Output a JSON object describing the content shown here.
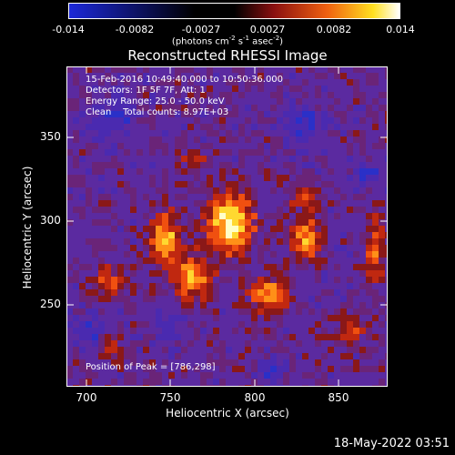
{
  "colorbar": {
    "ticks": [
      "-0.014",
      "-0.0082",
      "-0.0027",
      "0.0027",
      "0.0082",
      "0.014"
    ],
    "units_main": "(photons cm",
    "units_exp1": "-2",
    "units_mid": " s",
    "units_exp2": "-1",
    "units_end": " asec",
    "units_exp3": "-2",
    "units_close": ")"
  },
  "title": "Reconstructed RHESSI Image",
  "annotations": {
    "time_range": "15-Feb-2016 10:49:40.000 to 10:50:36.000",
    "detectors": "Detectors: 1F 5F 7F, Att: 1",
    "energy_range": "Energy Range: 25.0 - 50.0 keV",
    "algorithm": "Clean    Total counts: 8.97E+03",
    "peak_position": "Position of Peak = [786,298]"
  },
  "axes": {
    "x_title": "Heliocentric X (arcsec)",
    "y_title": "Heliocentric Y (arcsec)",
    "x_ticks": [
      "700",
      "750",
      "800",
      "850"
    ],
    "y_ticks": [
      "250",
      "300",
      "350"
    ]
  },
  "timestamp": "18-May-2022 03:51",
  "palette": {
    "deep_blue": "#1c28d8",
    "purple": "#5a24a8",
    "dark_red": "#8a1010",
    "orange": "#f06010",
    "yellow": "#ffe020",
    "white": "#ffffd8"
  }
}
